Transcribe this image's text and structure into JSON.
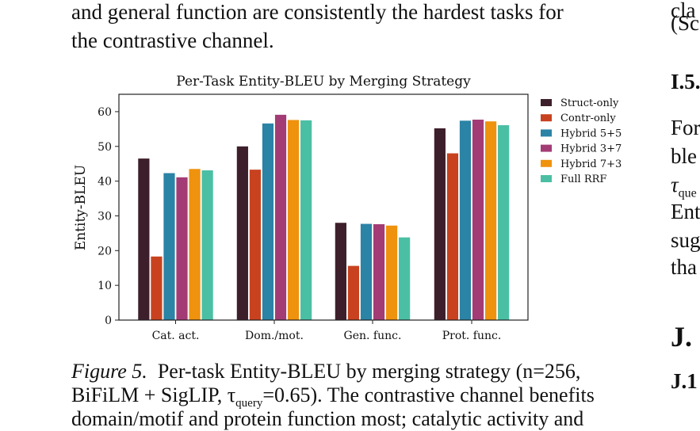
{
  "body_text": {
    "line1": "and general function are consistently the hardest tasks for",
    "line2": "the contrastive channel."
  },
  "right_column": {
    "l1": "cla",
    "l2": "(Sc",
    "section_heading": "I.5.",
    "p1": "For",
    "p2": "ble",
    "p3_sym": "τ",
    "p3_sub": "que",
    "p4": "Ent",
    "p5": "sug",
    "p6": "tha",
    "heading_j": "J.",
    "heading_j1": "J.1"
  },
  "caption": {
    "label": "Figure 5.",
    "line1": "Per-task Entity-BLEU by merging strategy (n=256,",
    "line2_a": "BiFiLM + SigLIP, τ",
    "line2_sub": "query",
    "line2_b": "=0.65). The contrastive channel benefits",
    "line3": "domain/motif and protein function most; catalytic activity and"
  },
  "chart_data": {
    "type": "bar",
    "title": "Per-Task Entity-BLEU by Merging Strategy",
    "xlabel": "",
    "ylabel": "Entity-BLEU",
    "ylim": [
      0,
      65
    ],
    "yticks": [
      0,
      10,
      20,
      30,
      40,
      50,
      60
    ],
    "grid": false,
    "legend_position": "top-right, outside plot",
    "categories": [
      "Cat. act.",
      "Dom./mot.",
      "Gen. func.",
      "Prot. func."
    ],
    "series": [
      {
        "name": "Struct-only",
        "color": "#3d1f2b",
        "values": [
          46.5,
          50.0,
          28.0,
          55.2
        ]
      },
      {
        "name": "Contr-only",
        "color": "#c8421f",
        "values": [
          18.3,
          43.3,
          15.6,
          48.0
        ]
      },
      {
        "name": "Hybrid 5+5",
        "color": "#2b83a5",
        "values": [
          42.3,
          56.6,
          27.7,
          57.4
        ]
      },
      {
        "name": "Hybrid 3+7",
        "color": "#a33c75",
        "values": [
          41.1,
          59.1,
          27.6,
          57.7
        ]
      },
      {
        "name": "Hybrid 7+3",
        "color": "#ef920e",
        "values": [
          43.5,
          57.6,
          27.2,
          57.2
        ]
      },
      {
        "name": "Full RRF",
        "color": "#4bbfa4",
        "values": [
          43.1,
          57.5,
          23.8,
          56.1
        ]
      }
    ]
  }
}
